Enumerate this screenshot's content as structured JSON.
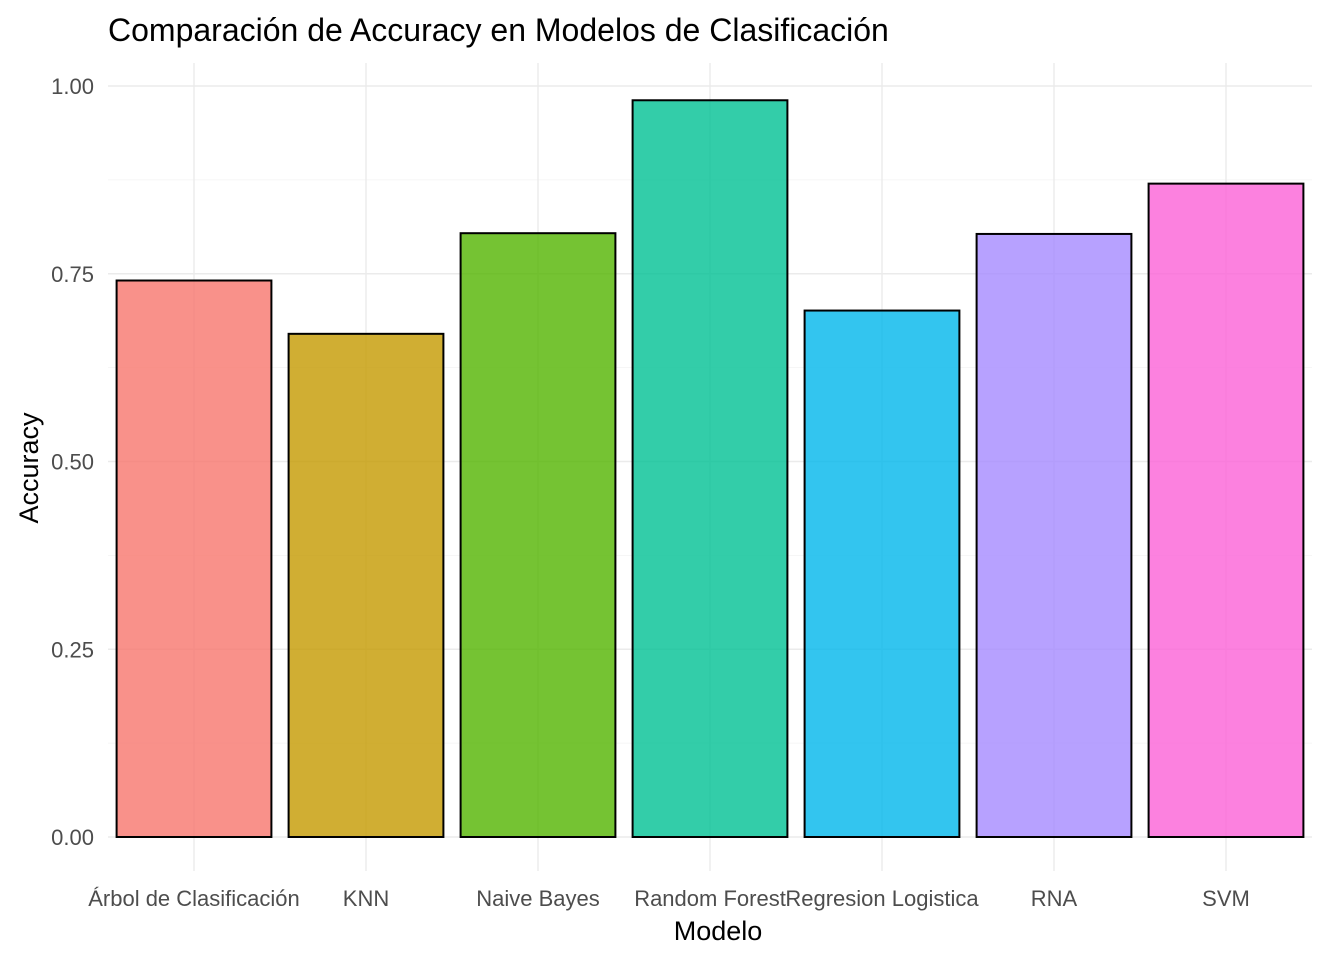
{
  "chart_data": {
    "type": "bar",
    "title": "Comparación de Accuracy en Modelos de Clasificación",
    "xlabel": "Modelo",
    "ylabel": "Accuracy",
    "ylim": [
      0,
      1
    ],
    "y_ticks": [
      "0.00",
      "0.25",
      "0.50",
      "0.75",
      "1.00"
    ],
    "categories": [
      "Árbol de Clasificación",
      "KNN",
      "Naive Bayes",
      "Random Forest",
      "Regresion Logistica",
      "RNA",
      "SVM"
    ],
    "values": [
      0.741,
      0.67,
      0.804,
      0.981,
      0.701,
      0.803,
      0.87
    ],
    "colors": [
      "#F8766D",
      "#C49A00",
      "#53B400",
      "#00C094",
      "#00B6EB",
      "#A58AFF",
      "#FB61D7"
    ],
    "bar_opacity": 0.8,
    "grid": true,
    "legend": "none"
  }
}
